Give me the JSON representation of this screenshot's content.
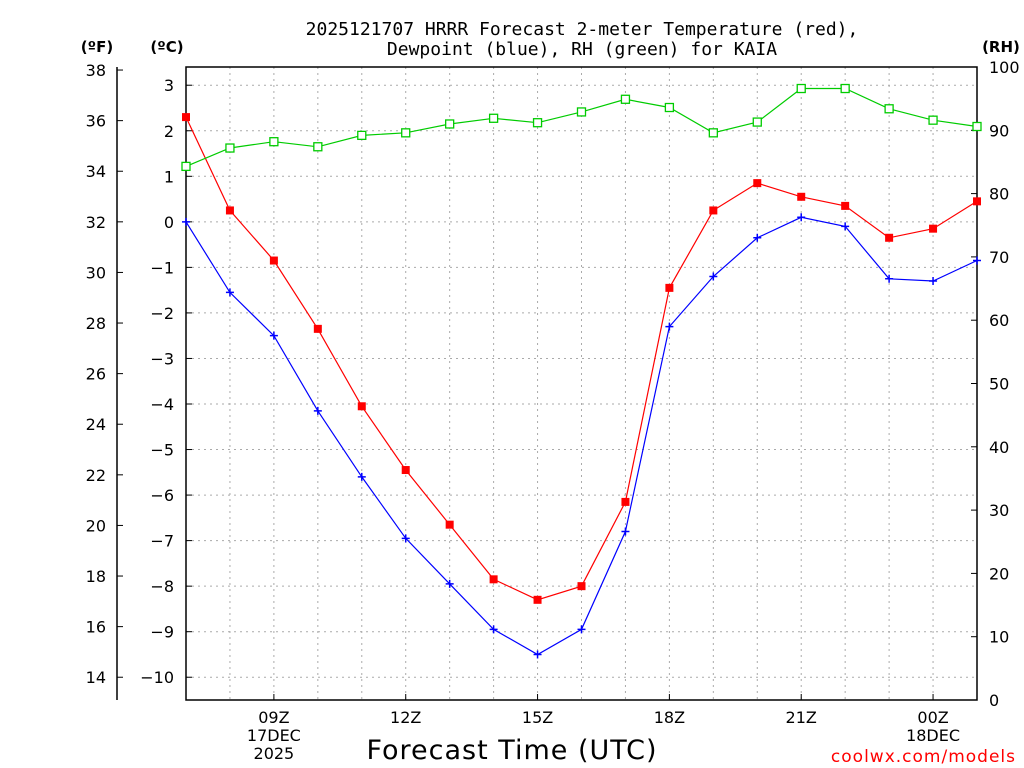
{
  "chart_data": {
    "type": "line",
    "title": [
      "2025121707 HRRR Forecast 2-meter Temperature (red),",
      "Dewpoint (blue), RH (green) for KAIA"
    ],
    "xlabel": "Forecast Time (UTC)",
    "credit": "coolwx.com/models",
    "units": {
      "fahrenheit": "(ºF)",
      "celsius": "(ºC)",
      "rh": "(RH)"
    },
    "colors": {
      "temperature": "#ff0000",
      "dewpoint": "#0000ff",
      "rh": "#00cc00"
    },
    "x_hours": [
      7,
      8,
      9,
      10,
      11,
      12,
      13,
      14,
      15,
      16,
      17,
      18,
      19,
      20,
      21,
      22,
      23,
      24,
      25
    ],
    "xlim": [
      7,
      25
    ],
    "x_ticks": [
      {
        "hour": 9,
        "lines": [
          "09Z",
          "17DEC",
          "2025"
        ]
      },
      {
        "hour": 12,
        "lines": [
          "12Z"
        ]
      },
      {
        "hour": 15,
        "lines": [
          "15Z"
        ]
      },
      {
        "hour": 18,
        "lines": [
          "18Z"
        ]
      },
      {
        "hour": 21,
        "lines": [
          "21Z"
        ]
      },
      {
        "hour": 24,
        "lines": [
          "00Z",
          "18DEC"
        ]
      }
    ],
    "celsius_axis": {
      "ylim": [
        -10.5,
        3.4
      ],
      "ticks": [
        3,
        2,
        1,
        0,
        -1,
        -2,
        -3,
        -4,
        -5,
        -6,
        -7,
        -8,
        -9,
        -10
      ]
    },
    "fahrenheit_axis": {
      "ticks": [
        38,
        36,
        34,
        32,
        30,
        28,
        26,
        24,
        22,
        20,
        18,
        16,
        14
      ]
    },
    "rh_axis": {
      "ylim": [
        0,
        100
      ],
      "ticks": [
        100,
        90,
        80,
        70,
        60,
        50,
        40,
        30,
        20,
        10,
        0
      ]
    },
    "series": [
      {
        "name": "Temperature",
        "units": "C",
        "marker": "filled-square",
        "color": "#ff0000",
        "values": [
          2.3,
          0.25,
          -0.85,
          -2.35,
          -4.05,
          -5.45,
          -6.65,
          -7.85,
          -8.3,
          -8.0,
          -6.15,
          -1.45,
          0.25,
          0.85,
          0.55,
          0.35,
          -0.35,
          -0.15,
          0.45
        ]
      },
      {
        "name": "Dewpoint",
        "units": "C",
        "marker": "plus",
        "color": "#0000ff",
        "values": [
          0.0,
          -1.55,
          -2.5,
          -4.15,
          -5.6,
          -6.95,
          -7.95,
          -8.95,
          -9.5,
          -8.95,
          -6.8,
          -2.3,
          -1.2,
          -0.35,
          0.1,
          -0.1,
          -1.25,
          -1.3,
          -0.85
        ]
      },
      {
        "name": "RH",
        "units": "%",
        "marker": "open-square",
        "color": "#00cc00",
        "values": [
          84.3,
          87.2,
          88.2,
          87.4,
          89.2,
          89.6,
          91.0,
          91.9,
          91.2,
          92.9,
          94.9,
          93.6,
          89.6,
          91.3,
          96.6,
          96.6,
          93.4,
          91.6,
          90.6
        ]
      }
    ]
  }
}
